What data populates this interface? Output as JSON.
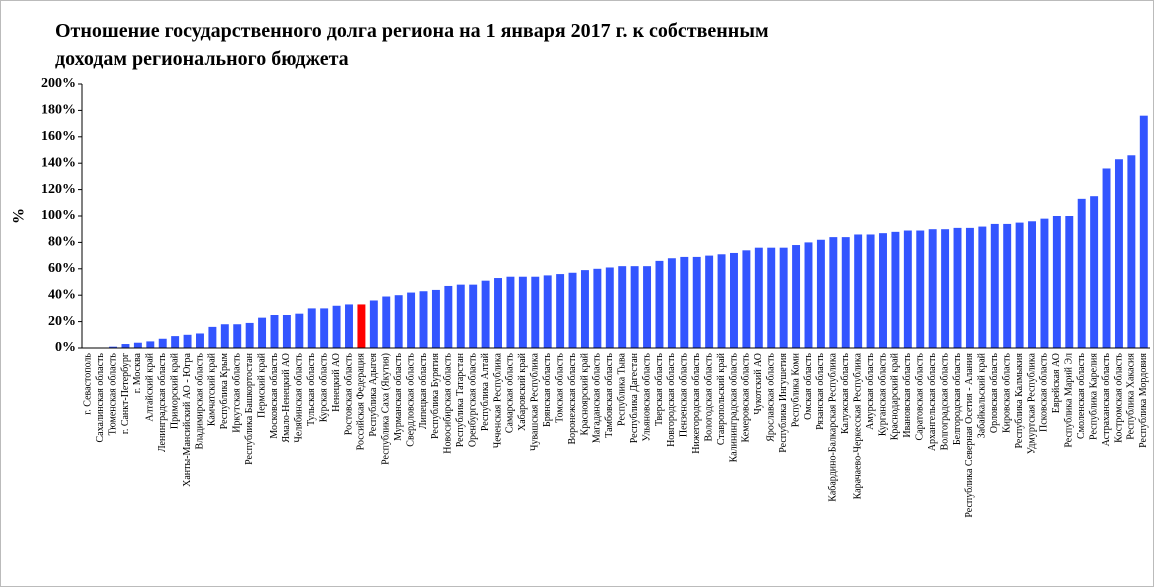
{
  "chart_data": {
    "type": "bar",
    "title_lines": [
      "Отношение государственного долга региона на 1 января 2017 г. к собственным",
      "доходам регионального бюджета"
    ],
    "ylabel": "%",
    "categories": [
      "г. Севастополь",
      "Сахалинская область",
      "Тюменская область",
      "г. Санкт-Петербург",
      "г. Москва",
      "Алтайский край",
      "Ленинградская область",
      "Приморский край",
      "Ханты-Мансийский АО - Югра",
      "Владимирская область",
      "Камчатский край",
      "Республика Крым",
      "Иркутская область",
      "Республика Башкортостан",
      "Пермский край",
      "Московская область",
      "Ямало-Ненецкий АО",
      "Челябинская область",
      "Тульская область",
      "Курская область",
      "Ненецкий АО",
      "Ростовская область",
      "Российская Федерация",
      "Республика Адыгея",
      "Республика Саха (Якутия)",
      "Мурманская область",
      "Свердловская область",
      "Липецкая область",
      "Республика Бурятия",
      "Новосибирская область",
      "Республика Татарстан",
      "Оренбургская область",
      "Республика Алтай",
      "Чеченская Республика",
      "Самарская область",
      "Хабаровский край",
      "Чувашская Республика",
      "Брянская область",
      "Томская область",
      "Воронежская область",
      "Красноярский край",
      "Магаданская область",
      "Тамбовская область",
      "Республика Тыва",
      "Республика Дагестан",
      "Ульяновская область",
      "Тверская область",
      "Новгородская область",
      "Пензенская область",
      "Нижегородская область",
      "Вологодская область",
      "Ставропольский край",
      "Калининградская область",
      "Кемеровская область",
      "Чукотский АО",
      "Ярославская область",
      "Республика Ингушетия",
      "Республика Коми",
      "Омская область",
      "Рязанская область",
      "Кабардино-Балкарская Республика",
      "Калужская область",
      "Карачаево-Черкесская Республика",
      "Амурская область",
      "Курганская область",
      "Краснодарский край",
      "Ивановская область",
      "Саратовская область",
      "Архангельская область",
      "Волгоградская область",
      "Белгородская область",
      "Республика Северная Осетия - Алания",
      "Забайкальский край",
      "Орловская область",
      "Кировская область",
      "Республика Калмыкия",
      "Удмуртская Республика",
      "Псковская область",
      "Еврейская АО",
      "Республика Марий Эл",
      "Смоленская область",
      "Республика Карелия",
      "Астраханская область",
      "Костромская область",
      "Республика Хакасия",
      "Республика Мордовия"
    ],
    "values": [
      0,
      0,
      1,
      3,
      4,
      5,
      7,
      9,
      10,
      11,
      16,
      18,
      18,
      19,
      23,
      25,
      25,
      26,
      30,
      30,
      32,
      33,
      33,
      36,
      39,
      40,
      42,
      43,
      44,
      47,
      48,
      48,
      51,
      53,
      54,
      54,
      54,
      55,
      56,
      57,
      59,
      60,
      61,
      62,
      62,
      62,
      66,
      68,
      69,
      69,
      70,
      71,
      72,
      74,
      76,
      76,
      76,
      78,
      80,
      82,
      84,
      84,
      86,
      86,
      87,
      88,
      89,
      89,
      90,
      90,
      91,
      91,
      92,
      94,
      94,
      95,
      96,
      98,
      100,
      100,
      113,
      115,
      136,
      143,
      146,
      176
    ],
    "colors": [
      "#3355ff",
      "#3355ff",
      "#3355ff",
      "#3355ff",
      "#3355ff",
      "#3355ff",
      "#3355ff",
      "#3355ff",
      "#3355ff",
      "#3355ff",
      "#3355ff",
      "#3355ff",
      "#3355ff",
      "#3355ff",
      "#3355ff",
      "#3355ff",
      "#3355ff",
      "#3355ff",
      "#3355ff",
      "#3355ff",
      "#3355ff",
      "#3355ff",
      "#ff0000",
      "#3355ff",
      "#3355ff",
      "#3355ff",
      "#3355ff",
      "#3355ff",
      "#3355ff",
      "#3355ff",
      "#3355ff",
      "#3355ff",
      "#3355ff",
      "#3355ff",
      "#3355ff",
      "#3355ff",
      "#3355ff",
      "#3355ff",
      "#3355ff",
      "#3355ff",
      "#3355ff",
      "#3355ff",
      "#3355ff",
      "#3355ff",
      "#3355ff",
      "#3355ff",
      "#3355ff",
      "#3355ff",
      "#3355ff",
      "#3355ff",
      "#3355ff",
      "#3355ff",
      "#3355ff",
      "#3355ff",
      "#3355ff",
      "#3355ff",
      "#3355ff",
      "#3355ff",
      "#3355ff",
      "#3355ff",
      "#3355ff",
      "#3355ff",
      "#3355ff",
      "#3355ff",
      "#3355ff",
      "#3355ff",
      "#3355ff",
      "#3355ff",
      "#3355ff",
      "#3355ff",
      "#3355ff",
      "#3355ff",
      "#3355ff",
      "#3355ff",
      "#3355ff",
      "#3355ff",
      "#3355ff",
      "#3355ff",
      "#3355ff",
      "#3355ff",
      "#3355ff",
      "#3355ff",
      "#3355ff",
      "#3355ff",
      "#3355ff",
      "#3355ff"
    ],
    "ylim": [
      0,
      200
    ],
    "yticks": [
      {
        "value": 0,
        "label": "0%"
      },
      {
        "value": 20,
        "label": "20%"
      },
      {
        "value": 40,
        "label": "40%"
      },
      {
        "value": 60,
        "label": "60%"
      },
      {
        "value": 80,
        "label": "80%"
      },
      {
        "value": 100,
        "label": "100%"
      },
      {
        "value": 120,
        "label": "120%"
      },
      {
        "value": 140,
        "label": "140%"
      },
      {
        "value": 160,
        "label": "160%"
      },
      {
        "value": 180,
        "label": "180%"
      },
      {
        "value": 200,
        "label": "200%"
      }
    ],
    "grid": false
  }
}
